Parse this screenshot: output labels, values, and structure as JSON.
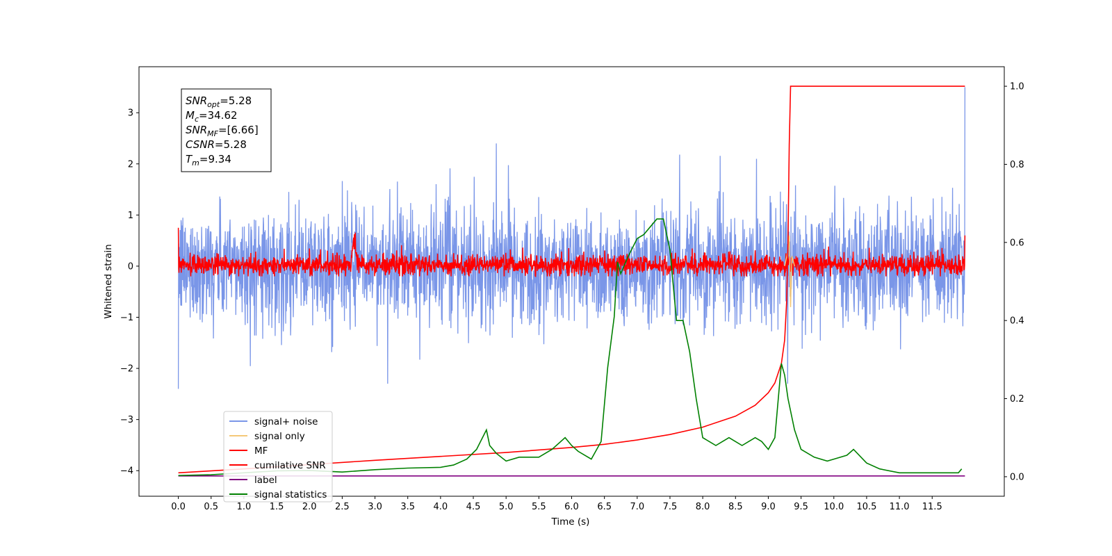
{
  "chart_data": {
    "type": "line",
    "xlabel": "Time (s)",
    "ylabel": "Whitened strain",
    "xlim": [
      -0.6,
      12.6
    ],
    "ylim_left": [
      -4.5,
      3.9
    ],
    "ylim_right": [
      -0.05,
      1.05
    ],
    "x_ticks": [
      "0.0",
      "0.5",
      "1.0",
      "1.5",
      "2.0",
      "2.5",
      "3.0",
      "3.5",
      "4.0",
      "4.5",
      "5.0",
      "5.5",
      "6.0",
      "6.5",
      "7.0",
      "7.5",
      "8.0",
      "8.5",
      "9.0",
      "9.5",
      "10.0",
      "10.5",
      "11.0",
      "11.5"
    ],
    "y_ticks_left": [
      "3",
      "2",
      "1",
      "0",
      "−1",
      "−2",
      "−3",
      "−4"
    ],
    "y_ticks_right": [
      "1.0",
      "0.8",
      "0.6",
      "0.4",
      "0.2",
      "0.0"
    ],
    "annotation": {
      "lines": [
        {
          "sym": "SNR",
          "sub": "opt",
          "val": "=5.28"
        },
        {
          "sym": "M",
          "sub": "c",
          "val": "=34.62"
        },
        {
          "sym": "SNR",
          "sub": "MF",
          "val": "=[6.66]"
        },
        {
          "sym": "CSNR",
          "sub": "",
          "val": "=5.28"
        },
        {
          "sym": "T",
          "sub": "m",
          "val": "=9.34"
        }
      ]
    },
    "legend": {
      "placement": "lower-left",
      "entries": [
        {
          "label": "signal+ noise",
          "color": "#7a96e8"
        },
        {
          "label": "signal only",
          "color": "#f5c878"
        },
        {
          "label": "MF",
          "color": "#ff0000"
        },
        {
          "label": "cumilative SNR",
          "color": "#ff0000"
        },
        {
          "label": "label",
          "color": "#800080"
        },
        {
          "label": "signal statistics",
          "color": "#008000"
        }
      ]
    },
    "series": [
      {
        "name": "signal+ noise",
        "axis": "left",
        "color": "#7a96e8",
        "x_range": [
          0,
          12
        ],
        "approx_band": [
          -1.2,
          1.2
        ],
        "approx_peaks": [
          2.4,
          -2.3
        ]
      },
      {
        "name": "signal only",
        "axis": "left",
        "color": "#f5c878",
        "x": [
          9.25,
          9.3,
          9.32,
          9.34,
          9.36,
          9.4
        ],
        "y": [
          0.0,
          0.3,
          0.6,
          -0.8,
          0.2,
          0.0
        ]
      },
      {
        "name": "MF",
        "axis": "left",
        "color": "#ff0000",
        "x_range": [
          0,
          12
        ],
        "approx_band": [
          -0.2,
          0.3
        ],
        "approx_peaks": [
          0.75,
          1.0
        ]
      },
      {
        "name": "cumilative SNR",
        "axis": "right",
        "color": "#ff0000",
        "x": [
          0.0,
          1.0,
          2.0,
          3.0,
          4.0,
          5.0,
          6.0,
          6.5,
          7.0,
          7.5,
          8.0,
          8.5,
          8.8,
          9.0,
          9.1,
          9.2,
          9.25,
          9.28,
          9.3,
          9.32,
          9.34,
          12.0
        ],
        "y": [
          0.01,
          0.02,
          0.031,
          0.042,
          0.052,
          0.062,
          0.075,
          0.083,
          0.094,
          0.108,
          0.127,
          0.155,
          0.183,
          0.215,
          0.24,
          0.29,
          0.35,
          0.45,
          0.6,
          0.85,
          1.0,
          1.0
        ]
      },
      {
        "name": "label",
        "axis": "right",
        "color": "#800080",
        "x": [
          0.0,
          12.0
        ],
        "y": [
          0.002,
          0.002
        ]
      },
      {
        "name": "signal statistics",
        "axis": "right",
        "color": "#008000",
        "x": [
          0.0,
          0.5,
          1.0,
          1.5,
          2.0,
          2.5,
          3.0,
          3.5,
          4.0,
          4.2,
          4.4,
          4.55,
          4.7,
          4.75,
          4.85,
          5.0,
          5.2,
          5.5,
          5.7,
          5.9,
          6.0,
          6.1,
          6.3,
          6.45,
          6.55,
          6.65,
          6.7,
          6.75,
          6.85,
          7.0,
          7.1,
          7.2,
          7.3,
          7.4,
          7.5,
          7.6,
          7.7,
          7.8,
          7.9,
          8.0,
          8.2,
          8.4,
          8.6,
          8.8,
          8.9,
          9.0,
          9.1,
          9.2,
          9.25,
          9.3,
          9.4,
          9.5,
          9.7,
          9.9,
          10.0,
          10.2,
          10.3,
          10.5,
          10.7,
          11.0,
          11.5,
          11.9,
          11.95
        ],
        "y": [
          0.003,
          0.005,
          0.01,
          0.015,
          0.016,
          0.012,
          0.018,
          0.022,
          0.024,
          0.03,
          0.045,
          0.07,
          0.12,
          0.08,
          0.06,
          0.04,
          0.05,
          0.05,
          0.07,
          0.1,
          0.08,
          0.065,
          0.045,
          0.09,
          0.28,
          0.41,
          0.55,
          0.52,
          0.56,
          0.61,
          0.62,
          0.64,
          0.66,
          0.66,
          0.58,
          0.4,
          0.4,
          0.32,
          0.2,
          0.1,
          0.08,
          0.1,
          0.08,
          0.1,
          0.09,
          0.07,
          0.1,
          0.29,
          0.26,
          0.2,
          0.12,
          0.07,
          0.05,
          0.04,
          0.045,
          0.055,
          0.07,
          0.035,
          0.02,
          0.01,
          0.01,
          0.01,
          0.02
        ]
      }
    ]
  }
}
